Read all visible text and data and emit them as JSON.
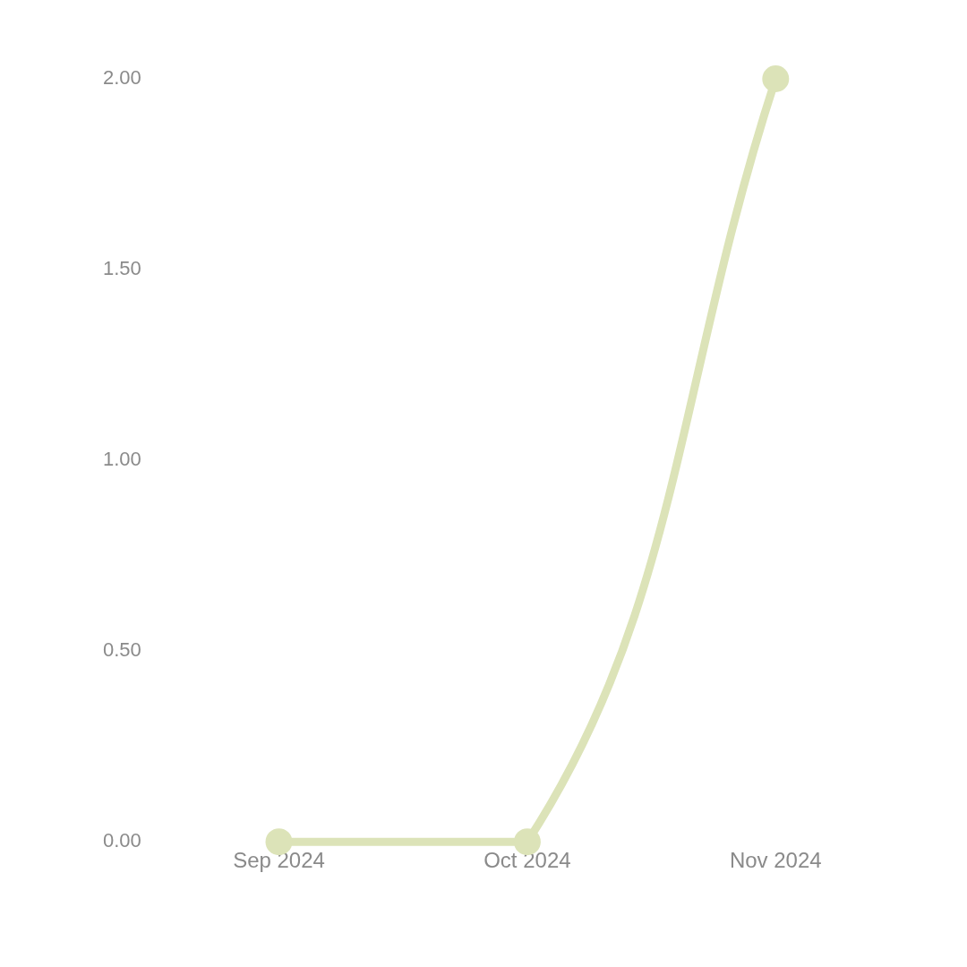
{
  "chart_data": {
    "type": "line",
    "categories": [
      "Sep 2024",
      "Oct 2024",
      "Nov 2024"
    ],
    "series": [
      {
        "color": "#dce3b8",
        "values": [
          0,
          0,
          2
        ]
      }
    ],
    "ylim": [
      0,
      2
    ],
    "yticks": [
      {
        "value": 0,
        "label": "0.00"
      },
      {
        "value": 0.5,
        "label": "0.50"
      },
      {
        "value": 1,
        "label": "1.00"
      },
      {
        "value": 1.5,
        "label": "1.50"
      },
      {
        "value": 2,
        "label": "2.00"
      }
    ],
    "grid": false,
    "legend": false,
    "marker": "circle",
    "line_style": "solid"
  }
}
